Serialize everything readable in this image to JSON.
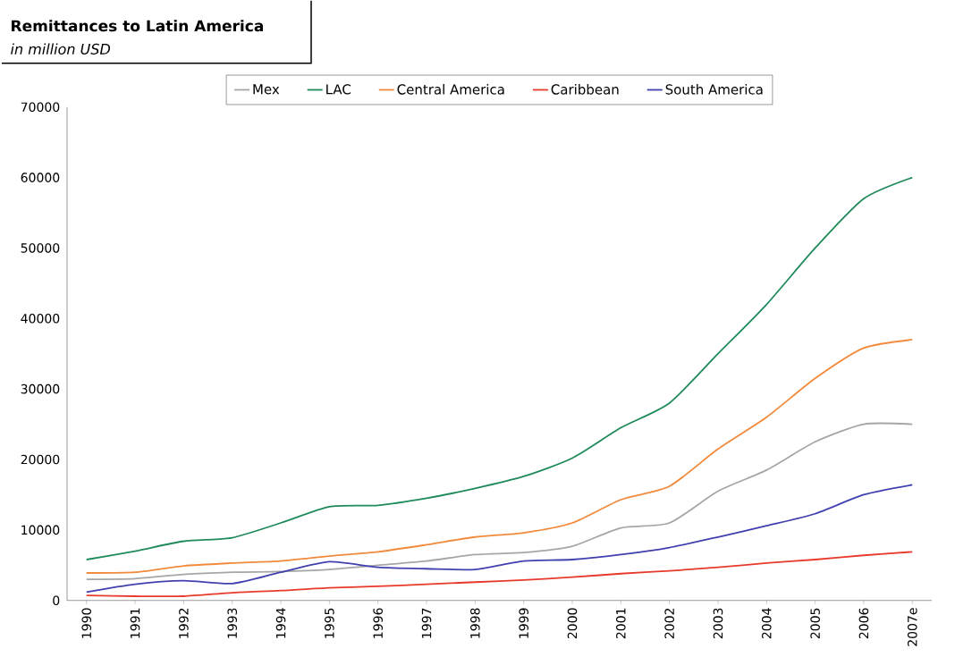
{
  "chart_data": {
    "type": "line",
    "title": "Remittances to Latin America",
    "subtitle": "in million USD",
    "categories": [
      "1990",
      "1991",
      "1992",
      "1993",
      "1994",
      "1995",
      "1996",
      "1997",
      "1998",
      "1999",
      "2000",
      "2001",
      "2002",
      "2003",
      "2004",
      "2005",
      "2006",
      "2007e"
    ],
    "series": [
      {
        "name": "Mex",
        "color": "#a6a6a6",
        "values": [
          3000,
          3100,
          3700,
          4000,
          4100,
          4400,
          5000,
          5600,
          6500,
          6800,
          7700,
          10300,
          11000,
          15500,
          18500,
          22500,
          25000,
          25000
        ]
      },
      {
        "name": "LAC",
        "color": "#1f8a5a",
        "values": [
          5800,
          7000,
          8400,
          8900,
          11000,
          13300,
          13500,
          14500,
          15900,
          17600,
          20200,
          24500,
          28000,
          35000,
          42000,
          50000,
          57000,
          60000
        ]
      },
      {
        "name": "Central America",
        "color": "#f28a3c",
        "values": [
          3900,
          4000,
          4900,
          5300,
          5600,
          6300,
          6900,
          7900,
          9000,
          9600,
          11000,
          14300,
          16200,
          21500,
          26000,
          31500,
          35800,
          37000
        ]
      },
      {
        "name": "Caribbean",
        "color": "#e8392b",
        "values": [
          700,
          600,
          600,
          1100,
          1400,
          1800,
          2000,
          2300,
          2600,
          2900,
          3300,
          3800,
          4200,
          4700,
          5300,
          5800,
          6400,
          6900
        ]
      },
      {
        "name": "South America",
        "color": "#4040b0",
        "values": [
          1200,
          2300,
          2800,
          2400,
          4000,
          5500,
          4700,
          4500,
          4400,
          5600,
          5800,
          6500,
          7500,
          9000,
          10600,
          12300,
          15000,
          16400
        ]
      }
    ],
    "ylim": [
      0,
      70000
    ],
    "yticks": [
      0,
      10000,
      20000,
      30000,
      40000,
      50000,
      60000,
      70000
    ],
    "legend": "top",
    "grid": false,
    "marker": "none",
    "line_style": "solid"
  }
}
